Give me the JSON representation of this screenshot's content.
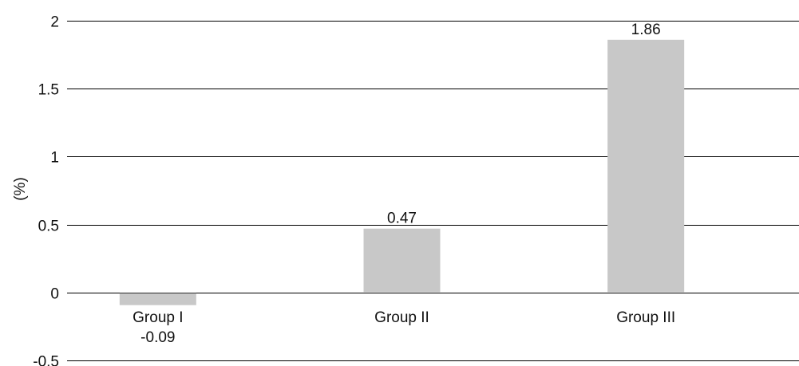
{
  "chart_data": {
    "type": "bar",
    "categories": [
      "Group I",
      "Group II",
      "Group III"
    ],
    "values": [
      -0.09,
      0.47,
      1.86
    ],
    "value_labels": [
      "-0.09",
      "0.47",
      "1.86"
    ],
    "title": "",
    "xlabel": "",
    "ylabel": "(%)",
    "ylim": [
      -0.5,
      2
    ],
    "yticks": [
      -0.5,
      0,
      0.5,
      1,
      1.5,
      2
    ],
    "ytick_labels": [
      "-0.5",
      "0",
      "0.5",
      "1",
      "1.5",
      "2"
    ],
    "grid": true,
    "legend": "none",
    "colors": {
      "bar": "#c8c8c8",
      "grid": "#000000",
      "text": "#111111"
    }
  }
}
